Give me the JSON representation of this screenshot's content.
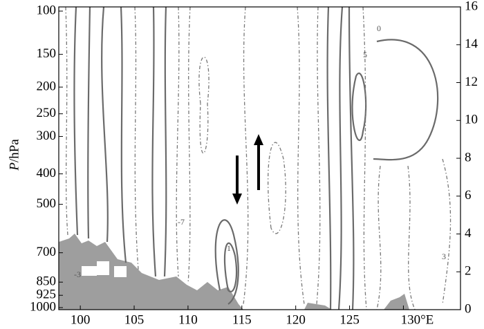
{
  "chart_data": {
    "type": "contour",
    "y_label_symbol": "P",
    "y_label_unit": "/hPa",
    "xlim": [
      98,
      135.3
    ],
    "xticks": [
      100,
      105,
      110,
      115,
      120,
      125,
      {
        "value": 130,
        "label": "130°E"
      }
    ],
    "ylim": [
      1013,
      96
    ],
    "yticks": [
      100,
      150,
      200,
      250,
      300,
      400,
      500,
      700,
      850,
      925,
      1000
    ],
    "y2lim": [
      0,
      16
    ],
    "y2ticks": [
      0,
      2,
      4,
      6,
      8,
      10,
      12,
      14,
      16
    ],
    "annotations": [
      "0",
      "5",
      "-7",
      "1",
      "3",
      "-3"
    ]
  }
}
